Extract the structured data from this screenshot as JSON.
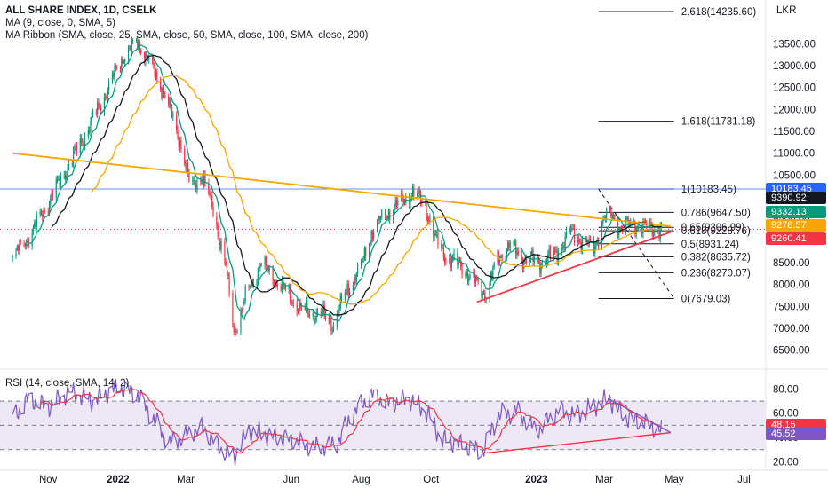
{
  "header": {
    "symbol_line": "ALL SHARE INDEX, 1D, CSELK",
    "ma_line": "MA (9, close, 0, SMA, 5)",
    "ribbon_line": "MA Ribbon (SMA, close, 25, SMA, close, 50, SMA, close, 100, SMA, close, 200)",
    "rsi_line": "RSI (14, close, SMA, 14, 2)",
    "currency": "LKR"
  },
  "colors": {
    "up": "#089981",
    "down": "#f23645",
    "ma9": "#089981",
    "ma25": "#131722",
    "ma50": "#f7a600",
    "trend_orange": "#f7a600",
    "trend_red": "#f23645",
    "rsi_line": "#7e57c2",
    "rsi_ma": "#f23645",
    "rsi_band": "#ede7f6",
    "hline_blue": "#2962ff"
  },
  "chart_data": [
    {
      "type": "candlestick",
      "title": "ALL SHARE INDEX, 1D, CSELK",
      "x_ticks": [
        "Nov",
        "2022",
        "Mar",
        "Jun",
        "Aug",
        "Oct",
        "2023",
        "Mar",
        "May",
        "Jul"
      ],
      "y_ticks": [
        6500,
        7000,
        7500,
        8000,
        8500,
        9000,
        9500,
        10000,
        10500,
        11000,
        11500,
        12000,
        12500,
        13000,
        13500
      ],
      "y_tick_labels": [
        "6500.00",
        "7000.00",
        "7500.00",
        "8000.00",
        "8500.00",
        "9000.00",
        "9500.00",
        "10000.00",
        "10500.00",
        "11000.00",
        "11500.00",
        "12000.00",
        "12500.00",
        "13000.00",
        "13500.00"
      ],
      "ylim": [
        6150,
        14500
      ],
      "price_anchors": [
        [
          "2021-10-01",
          8600
        ],
        [
          "2021-10-20",
          9300
        ],
        [
          "2021-11-10",
          10300
        ],
        [
          "2021-12-01",
          11300
        ],
        [
          "2021-12-20",
          12300
        ],
        [
          "2022-01-05",
          13200
        ],
        [
          "2022-01-18",
          13550
        ],
        [
          "2022-01-28",
          13100
        ],
        [
          "2022-02-10",
          12400
        ],
        [
          "2022-02-25",
          11200
        ],
        [
          "2022-03-05",
          10200
        ],
        [
          "2022-03-15",
          10500
        ],
        [
          "2022-03-25",
          9700
        ],
        [
          "2022-04-05",
          8400
        ],
        [
          "2022-04-12",
          6900
        ],
        [
          "2022-04-22",
          7700
        ],
        [
          "2022-05-05",
          8500
        ],
        [
          "2022-05-15",
          8200
        ],
        [
          "2022-05-25",
          7900
        ],
        [
          "2022-06-10",
          7400
        ],
        [
          "2022-06-28",
          7300
        ],
        [
          "2022-07-08",
          7100
        ],
        [
          "2022-07-20",
          7900
        ],
        [
          "2022-08-01",
          8400
        ],
        [
          "2022-08-10",
          9200
        ],
        [
          "2022-08-22",
          9600
        ],
        [
          "2022-09-05",
          9900
        ],
        [
          "2022-09-15",
          10100
        ],
        [
          "2022-09-26",
          9800
        ],
        [
          "2022-10-05",
          9000
        ],
        [
          "2022-10-15",
          8600
        ],
        [
          "2022-10-28",
          8400
        ],
        [
          "2022-11-10",
          8000
        ],
        [
          "2022-11-18",
          7800
        ],
        [
          "2022-11-28",
          8600
        ],
        [
          "2022-12-08",
          8900
        ],
        [
          "2022-12-20",
          8600
        ],
        [
          "2023-01-05",
          8500
        ],
        [
          "2023-01-18",
          8700
        ],
        [
          "2023-01-30",
          9200
        ],
        [
          "2023-02-10",
          9000
        ],
        [
          "2023-02-20",
          8800
        ],
        [
          "2023-02-28",
          9500
        ],
        [
          "2023-03-08",
          9600
        ],
        [
          "2023-03-15",
          9300
        ],
        [
          "2023-03-25",
          9400
        ],
        [
          "2023-04-05",
          9300
        ],
        [
          "2023-04-20",
          9260
        ]
      ],
      "series": [
        {
          "name": "MA (9, close, 0, SMA, 5)",
          "period": 9
        },
        {
          "name": "MA Ribbon 25",
          "period": 25
        },
        {
          "name": "MA Ribbon 50",
          "period": 50
        }
      ],
      "fibonacci": [
        {
          "label": "2.618(14235.60)",
          "value": 14235.6
        },
        {
          "label": "1.618(11731.18)",
          "value": 11731.18
        },
        {
          "label": "1(10183.45)",
          "value": 10183.45
        },
        {
          "label": "0.786(9647.50)",
          "value": 9647.5
        },
        {
          "label": "0.65(9306.99)",
          "value": 9306.99
        },
        {
          "label": "0.618(9228.76)",
          "value": 9228.76
        },
        {
          "label": "0.5(8931.24)",
          "value": 8931.24
        },
        {
          "label": "0.382(8635.72)",
          "value": 8635.72
        },
        {
          "label": "0.236(8270.07)",
          "value": 8270.07
        },
        {
          "label": "0(7679.03)",
          "value": 7679.03
        }
      ],
      "price_tags": [
        {
          "label": "10183.45",
          "value": 10183.45,
          "color": "#2962ff"
        },
        {
          "label": "9390.92",
          "value": 9390.92,
          "color": "#131722"
        },
        {
          "label": "9332.13",
          "value": 9332.13,
          "color": "#089981"
        },
        {
          "label": "9278.57",
          "value": 9278.57,
          "color": "#f7a600"
        },
        {
          "label": "9260.41",
          "value": 9260.41,
          "color": "#f23645"
        }
      ],
      "trendlines": [
        {
          "color": "#f7a600",
          "from": [
            "2021-10-01",
            11000
          ],
          "to": [
            "2023-04-28",
            9330
          ]
        },
        {
          "color": "#f23645",
          "from": [
            "2022-11-10",
            7600
          ],
          "to": [
            "2023-04-28",
            9200
          ]
        }
      ]
    },
    {
      "type": "line",
      "title": "RSI (14, close, SMA, 14, 2)",
      "y_ticks": [
        20,
        40,
        60,
        80
      ],
      "y_tick_labels": [
        "20.00",
        "40.00",
        "60.00",
        "80.00"
      ],
      "ylim": [
        13,
        92
      ],
      "band": [
        30,
        70
      ],
      "midline": 50,
      "rsi_anchors": [
        [
          "2021-10-01",
          55
        ],
        [
          "2021-10-15",
          72
        ],
        [
          "2021-11-01",
          65
        ],
        [
          "2021-11-20",
          78
        ],
        [
          "2021-12-10",
          70
        ],
        [
          "2022-01-01",
          82
        ],
        [
          "2022-01-18",
          75
        ],
        [
          "2022-02-01",
          55
        ],
        [
          "2022-02-15",
          35
        ],
        [
          "2022-03-01",
          42
        ],
        [
          "2022-03-15",
          48
        ],
        [
          "2022-04-01",
          30
        ],
        [
          "2022-04-12",
          24
        ],
        [
          "2022-04-25",
          46
        ],
        [
          "2022-05-10",
          42
        ],
        [
          "2022-06-01",
          38
        ],
        [
          "2022-06-20",
          32
        ],
        [
          "2022-07-10",
          34
        ],
        [
          "2022-07-25",
          60
        ],
        [
          "2022-08-10",
          75
        ],
        [
          "2022-08-25",
          68
        ],
        [
          "2022-09-12",
          72
        ],
        [
          "2022-09-28",
          60
        ],
        [
          "2022-10-10",
          38
        ],
        [
          "2022-10-25",
          35
        ],
        [
          "2022-11-15",
          28
        ],
        [
          "2022-11-28",
          58
        ],
        [
          "2022-12-15",
          62
        ],
        [
          "2023-01-01",
          45
        ],
        [
          "2023-01-20",
          62
        ],
        [
          "2023-02-05",
          58
        ],
        [
          "2023-02-20",
          66
        ],
        [
          "2023-03-05",
          72
        ],
        [
          "2023-03-20",
          56
        ],
        [
          "2023-04-05",
          52
        ],
        [
          "2023-04-20",
          45.52
        ]
      ],
      "series": [
        {
          "name": "RSI",
          "last": 45.52
        },
        {
          "name": "RSI SMA 14",
          "last": 48.15
        }
      ],
      "value_tags": [
        {
          "label": "48.15",
          "value": 48.15,
          "color": "#f23645"
        },
        {
          "label": "45.52",
          "value": 45.52,
          "color": "#7e57c2"
        }
      ]
    }
  ]
}
